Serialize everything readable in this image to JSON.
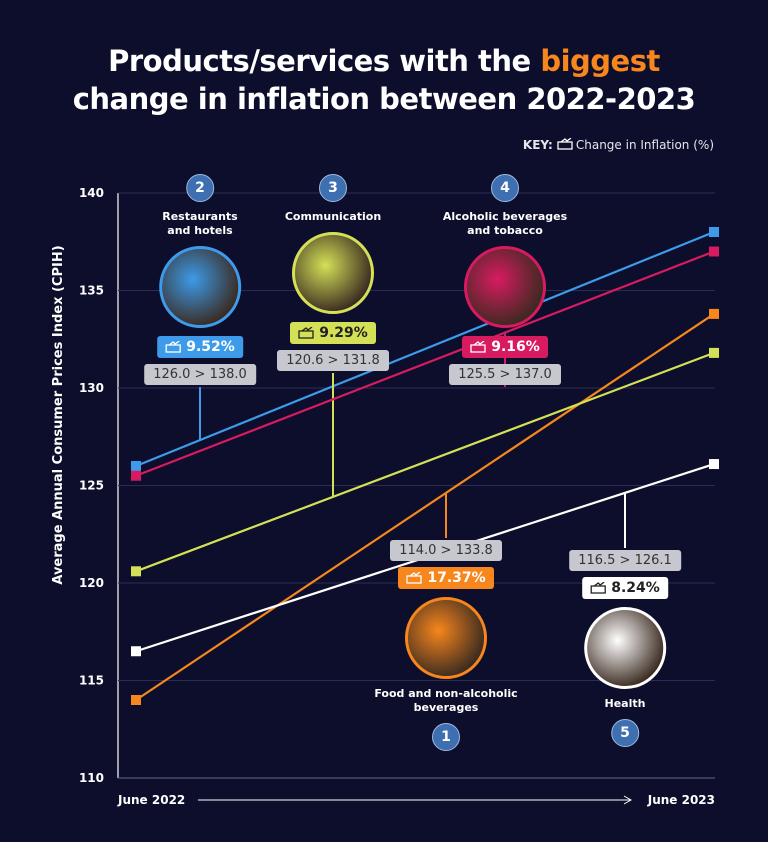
{
  "chart_data": {
    "type": "line",
    "title_before": "Products/services with the",
    "title_highlight": "biggest",
    "title_after": "change in inflation between 2022-2023",
    "key_label": "KEY:",
    "key_text": "Change in Inflation (%)",
    "y_label": "Average Annual Consumer Prices Index (CPIH)",
    "categories": [
      "June 2022",
      "June 2023"
    ],
    "ylim": [
      110,
      140
    ],
    "yticks": [
      110,
      115,
      120,
      125,
      130,
      135,
      140
    ],
    "grid": true,
    "series": [
      {
        "name": "Food and non-alcoholic beverages",
        "color": "#f7861c",
        "values": [
          114.0,
          133.8
        ],
        "change": 17.37,
        "change_label": "17.37%",
        "range_label": "114.0 > 133.8",
        "rank": 1
      },
      {
        "name": "Restaurants and hotels",
        "color": "#3d9be9",
        "values": [
          126.0,
          138.0
        ],
        "change": 9.52,
        "change_label": "9.52%",
        "range_label": "126.0 > 138.0",
        "rank": 2
      },
      {
        "name": "Communication",
        "color": "#d4e157",
        "values": [
          120.6,
          131.8
        ],
        "change": 9.29,
        "change_label": "9.29%",
        "range_label": "120.6 > 131.8",
        "rank": 3
      },
      {
        "name": "Alcoholic beverages and tobacco",
        "color": "#d81b60",
        "values": [
          125.5,
          137.0
        ],
        "change": 9.16,
        "change_label": "9.16%",
        "range_label": "125.5 > 137.0",
        "rank": 4
      },
      {
        "name": "Health",
        "color": "#ffffff",
        "values": [
          116.5,
          126.1
        ],
        "change": 8.24,
        "change_label": "8.24%",
        "range_label": "116.5 > 126.1",
        "rank": 5
      }
    ]
  }
}
